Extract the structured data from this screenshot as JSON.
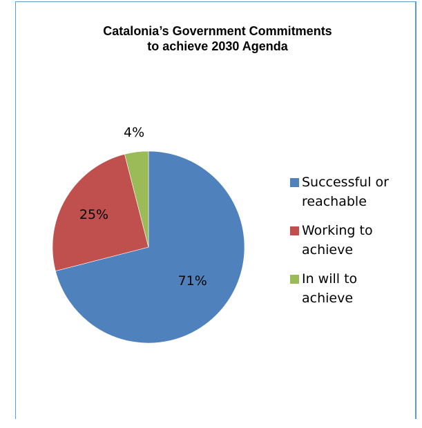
{
  "chart_data": {
    "type": "pie",
    "title": [
      "Catalonia’s Government Commitments",
      "to achieve 2030 Agenda"
    ],
    "slices": [
      {
        "label": "Successful or reachable",
        "legend_lines": [
          "Successful or",
          "reachable"
        ],
        "value": 71,
        "display": "71%",
        "color": "#4f81bd"
      },
      {
        "label": "Working to achieve",
        "legend_lines": [
          "Working to",
          "achieve"
        ],
        "value": 25,
        "display": "25%",
        "color": "#c0504d"
      },
      {
        "label": "In will to achieve",
        "legend_lines": [
          "In will to",
          "achieve"
        ],
        "value": 4,
        "display": "4%",
        "color": "#9bbb59"
      }
    ],
    "legend_position": "right",
    "start_angle": "12 o'clock",
    "direction": "clockwise"
  }
}
